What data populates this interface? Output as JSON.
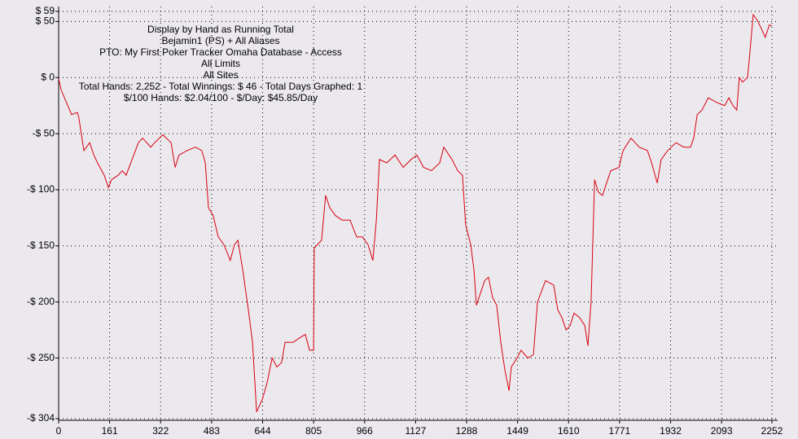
{
  "chart_data": {
    "type": "line",
    "text_lines": [
      "Display by Hand as Running Total",
      "Bejamin1 (PS) + All Aliases",
      "PTO: My First Poker Tracker Omaha Database - Access",
      "All Limits",
      "All Sites",
      "Total Hands: 2,252 - Total Winnings: $ 46 - Total Days Graphed: 1",
      "$/100 Hands: $2.04/100 - $/Day: $45.85/Day"
    ],
    "x": [
      0,
      8,
      41,
      59,
      64,
      72,
      80,
      98,
      111,
      123,
      144,
      157,
      167,
      188,
      201,
      213,
      252,
      265,
      291,
      303,
      329,
      355,
      368,
      380,
      406,
      432,
      452,
      463,
      473,
      488,
      504,
      522,
      542,
      555,
      566,
      581,
      599,
      612,
      625,
      643,
      658,
      674,
      689,
      704,
      715,
      740,
      761,
      779,
      792,
      805,
      807,
      830,
      843,
      856,
      874,
      895,
      920,
      941,
      959,
      977,
      992,
      1003,
      1013,
      1036,
      1062,
      1088,
      1113,
      1131,
      1152,
      1177,
      1203,
      1216,
      1242,
      1260,
      1275,
      1285,
      1301,
      1311,
      1319,
      1332,
      1345,
      1357,
      1370,
      1383,
      1396,
      1409,
      1422,
      1429,
      1447,
      1460,
      1481,
      1499,
      1512,
      1537,
      1563,
      1576,
      1589,
      1602,
      1615,
      1627,
      1645,
      1661,
      1671,
      1681,
      1692,
      1704,
      1717,
      1730,
      1743,
      1769,
      1782,
      1807,
      1833,
      1859,
      1872,
      1890,
      1902,
      1923,
      1949,
      1974,
      1995,
      2005,
      2016,
      2031,
      2051,
      2077,
      2103,
      2116,
      2129,
      2141,
      2149,
      2159,
      2175,
      2180,
      2193,
      2206,
      2218,
      2231,
      2244,
      2252
    ],
    "series": [
      {
        "color": "#d8000f",
        "values": [
          -1,
          -11,
          -33,
          -31,
          -36,
          -51,
          -65,
          -58,
          -69,
          -76,
          -87,
          -98,
          -91,
          -87,
          -83,
          -87,
          -58,
          -54,
          -62,
          -58,
          -51,
          -58,
          -80,
          -69,
          -65,
          -62,
          -65,
          -76,
          -116,
          -123,
          -142,
          -149,
          -163,
          -149,
          -145,
          -171,
          -207,
          -236,
          -298,
          -287,
          -272,
          -250,
          -258,
          -254,
          -236,
          -236,
          -232,
          -229,
          -243,
          -243,
          -152,
          -145,
          -105,
          -116,
          -123,
          -127,
          -127,
          -142,
          -142,
          -149,
          -163,
          -127,
          -73,
          -76,
          -69,
          -80,
          -73,
          -69,
          -80,
          -83,
          -76,
          -62,
          -73,
          -83,
          -87,
          -131,
          -149,
          -171,
          -203,
          -192,
          -181,
          -178,
          -196,
          -203,
          -236,
          -261,
          -279,
          -258,
          -250,
          -243,
          -250,
          -247,
          -200,
          -181,
          -185,
          -207,
          -214,
          -225,
          -221,
          -210,
          -214,
          -221,
          -239,
          -200,
          -91,
          -102,
          -105,
          -94,
          -83,
          -80,
          -65,
          -54,
          -62,
          -65,
          -76,
          -94,
          -73,
          -65,
          -58,
          -62,
          -62,
          -54,
          -33,
          -29,
          -18,
          -22,
          -25,
          -18,
          -25,
          -29,
          0,
          -4,
          0,
          15,
          56,
          51,
          44,
          36,
          47,
          46
        ]
      }
    ],
    "xlim": [
      0,
      2252
    ],
    "xticks": [
      0,
      161,
      322,
      483,
      644,
      805,
      966,
      1127,
      1288,
      1449,
      1610,
      1771,
      1932,
      2093,
      2252
    ],
    "ylim": [
      -304,
      59
    ],
    "yticks": [
      {
        "value": 59,
        "label": "$ 59"
      },
      {
        "value": 50,
        "label": "$ 50"
      },
      {
        "value": 0,
        "label": "$ 0"
      },
      {
        "value": -50,
        "label": "-$ 50"
      },
      {
        "value": -100,
        "label": "-$ 100"
      },
      {
        "value": -150,
        "label": "-$ 150"
      },
      {
        "value": -200,
        "label": "-$ 200"
      },
      {
        "value": -250,
        "label": "-$ 250"
      },
      {
        "value": -304,
        "label": "-$ 304"
      }
    ],
    "grid": true
  }
}
